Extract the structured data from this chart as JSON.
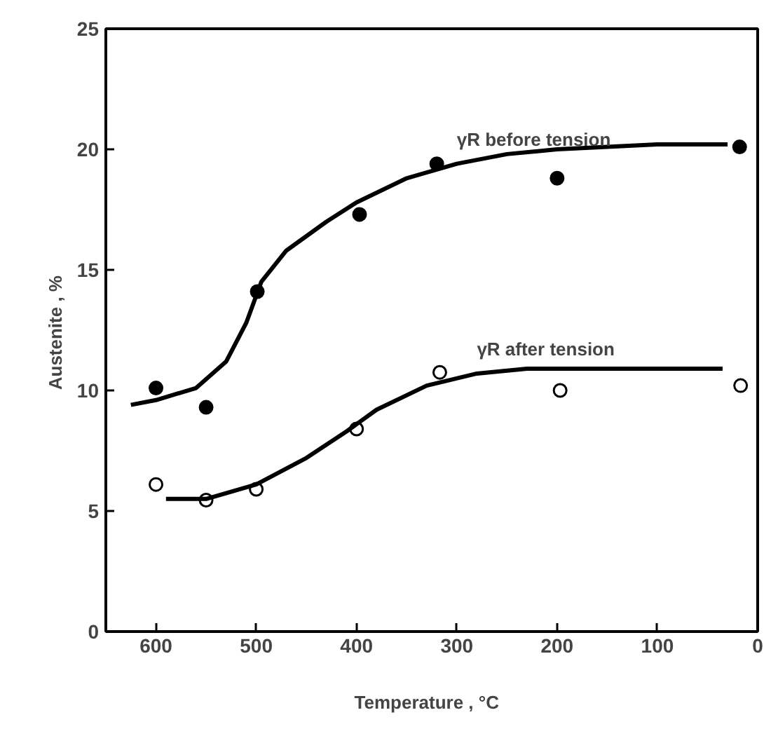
{
  "chart_data": {
    "type": "scatter",
    "xlabel": "Temperature ,   °C",
    "ylabel": "Austenite ,  %",
    "xlim": [
      650,
      0
    ],
    "ylim": [
      0,
      25
    ],
    "xticks": [
      600,
      500,
      400,
      300,
      200,
      100,
      0
    ],
    "yticks": [
      0,
      5,
      10,
      15,
      20,
      25
    ],
    "grid": false,
    "legend": false,
    "marker": "circle",
    "series": [
      {
        "color": "#000000",
        "x": [
          600,
          550,
          499,
          397,
          320,
          200,
          18
        ],
        "values": [
          10.1,
          9.3,
          14.1,
          17.3,
          19.4,
          18.8,
          20.1
        ]
      },
      {
        "color": "#ffffff",
        "x": [
          600,
          550,
          500,
          400,
          317,
          197,
          17
        ],
        "values": [
          6.1,
          5.45,
          5.9,
          8.4,
          10.75,
          10.0,
          10.2
        ]
      },
      {
        "type": "line",
        "name": "γR before tension",
        "color": "#000000",
        "marker": "none",
        "x": [
          625,
          600,
          560,
          530,
          510,
          495,
          470,
          430,
          400,
          350,
          300,
          250,
          200,
          100,
          30
        ],
        "values": [
          9.4,
          9.6,
          10.1,
          11.2,
          12.8,
          14.5,
          15.8,
          17.0,
          17.8,
          18.8,
          19.4,
          19.8,
          20.0,
          20.2,
          20.2
        ]
      },
      {
        "type": "line",
        "name": "γR after tension",
        "color": "#000000",
        "marker": "none",
        "x": [
          590,
          550,
          500,
          450,
          410,
          380,
          330,
          280,
          230,
          150,
          35
        ],
        "values": [
          5.5,
          5.5,
          6.1,
          7.2,
          8.3,
          9.2,
          10.2,
          10.7,
          10.9,
          10.9,
          10.9
        ]
      }
    ]
  }
}
